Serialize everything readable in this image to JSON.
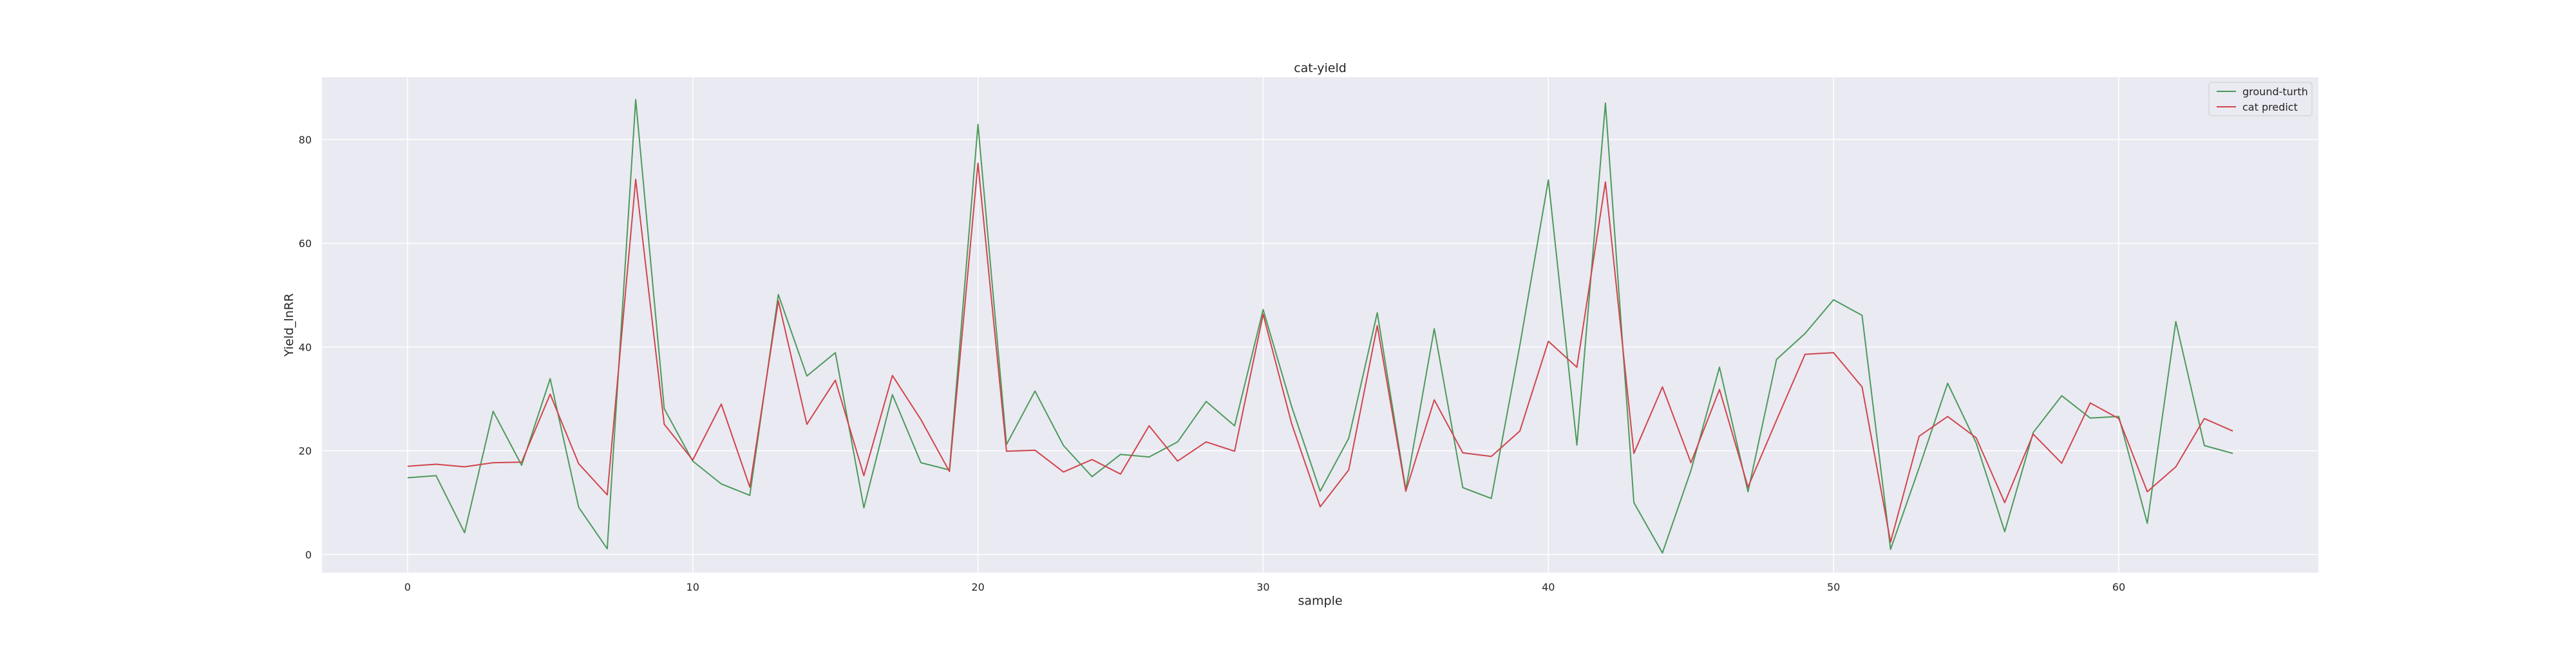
{
  "chart_data": {
    "type": "line",
    "title": "cat-yield",
    "xlabel": "sample",
    "ylabel": "Yield_lnRR",
    "xlim": [
      -3,
      67
    ],
    "ylim": [
      -3.5,
      92
    ],
    "xticks": [
      0,
      10,
      20,
      30,
      40,
      50,
      60
    ],
    "yticks": [
      0,
      20,
      40,
      60,
      80
    ],
    "grid": true,
    "legend": "top-right",
    "background": "#eaeaf2",
    "x": [
      0,
      1,
      2,
      3,
      4,
      5,
      6,
      7,
      8,
      9,
      10,
      11,
      12,
      13,
      14,
      15,
      16,
      17,
      18,
      19,
      20,
      21,
      22,
      23,
      24,
      25,
      26,
      27,
      28,
      29,
      30,
      31,
      32,
      33,
      34,
      35,
      36,
      37,
      38,
      39,
      40,
      41,
      42,
      43,
      44,
      45,
      46,
      47,
      48,
      49,
      50,
      51,
      52,
      53,
      54,
      55,
      56,
      57,
      58,
      59,
      60,
      61,
      62,
      63,
      64
    ],
    "series": [
      {
        "name": "ground-turth",
        "color": "#4c9a5b",
        "values": [
          14.8,
          15.2,
          4.2,
          27.6,
          17.2,
          33.9,
          9.1,
          1.1,
          87.7,
          28.1,
          18.0,
          13.6,
          11.4,
          50.1,
          34.4,
          38.9,
          9.0,
          30.8,
          17.7,
          16.3,
          82.9,
          21.2,
          31.5,
          21.0,
          15.0,
          19.3,
          18.8,
          21.7,
          29.5,
          24.8,
          47.2,
          28.5,
          12.2,
          22.4,
          46.6,
          12.5,
          43.5,
          12.9,
          10.8,
          40.3,
          72.2,
          21.1,
          87.0,
          10.0,
          0.3,
          16.2,
          36.1,
          12.1,
          37.6,
          42.6,
          49.1,
          46.1,
          1.0,
          16.7,
          33.0,
          21.5,
          4.4,
          23.5,
          30.6,
          26.3,
          26.6,
          6.0,
          44.9,
          21.0,
          19.5
        ]
      },
      {
        "name": "cat predict",
        "color": "#d0454c",
        "values": [
          17.0,
          17.4,
          16.9,
          17.7,
          17.8,
          30.9,
          17.5,
          11.5,
          72.3,
          25.1,
          18.2,
          29.0,
          13.0,
          48.9,
          25.1,
          33.6,
          15.2,
          34.5,
          26.0,
          16.0,
          75.4,
          19.9,
          20.1,
          15.9,
          18.3,
          15.5,
          24.8,
          18.0,
          21.7,
          19.9,
          46.3,
          25.2,
          9.2,
          16.3,
          44.1,
          12.2,
          29.8,
          19.6,
          18.9,
          23.8,
          41.1,
          36.1,
          71.8,
          19.5,
          32.3,
          17.7,
          31.8,
          13.0,
          25.9,
          38.6,
          38.9,
          32.3,
          2.4,
          22.8,
          26.6,
          22.5,
          10.0,
          23.2,
          17.6,
          29.2,
          26.2,
          12.1,
          16.9,
          26.2,
          23.8
        ]
      }
    ]
  }
}
